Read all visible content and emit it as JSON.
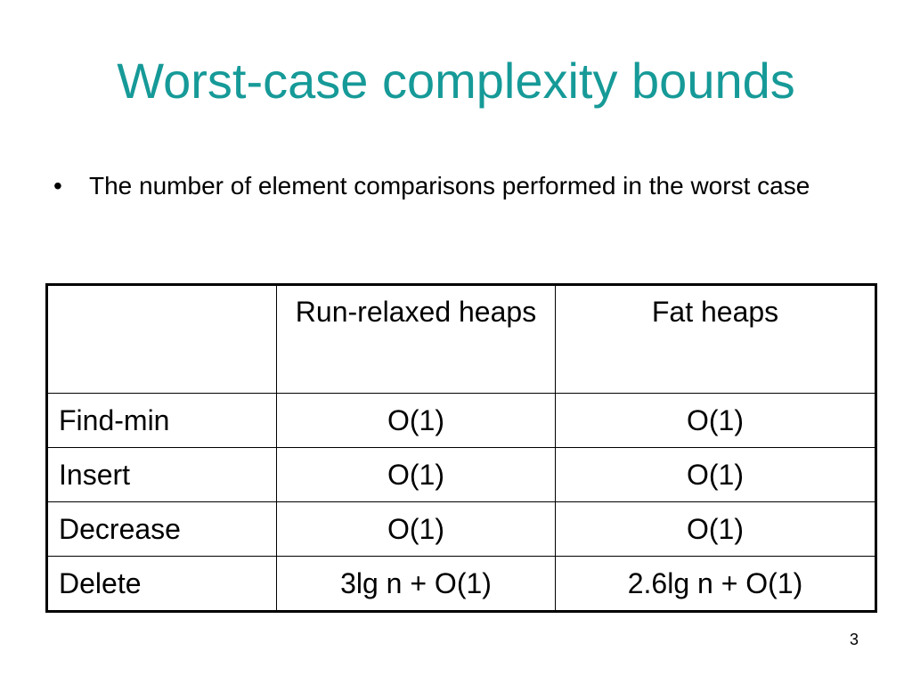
{
  "title": "Worst-case complexity bounds",
  "bullets": [
    "The number of element comparisons performed in the worst case"
  ],
  "table": {
    "header": [
      "",
      "Run-relaxed heaps",
      "Fat heaps"
    ],
    "rows": [
      [
        "Find-min",
        "O(1)",
        "O(1)"
      ],
      [
        "Insert",
        "O(1)",
        "O(1)"
      ],
      [
        "Decrease",
        "O(1)",
        "O(1)"
      ],
      [
        "Delete",
        "3lg n + O(1)",
        "2.6lg n + O(1)"
      ]
    ]
  },
  "page_number": "3"
}
